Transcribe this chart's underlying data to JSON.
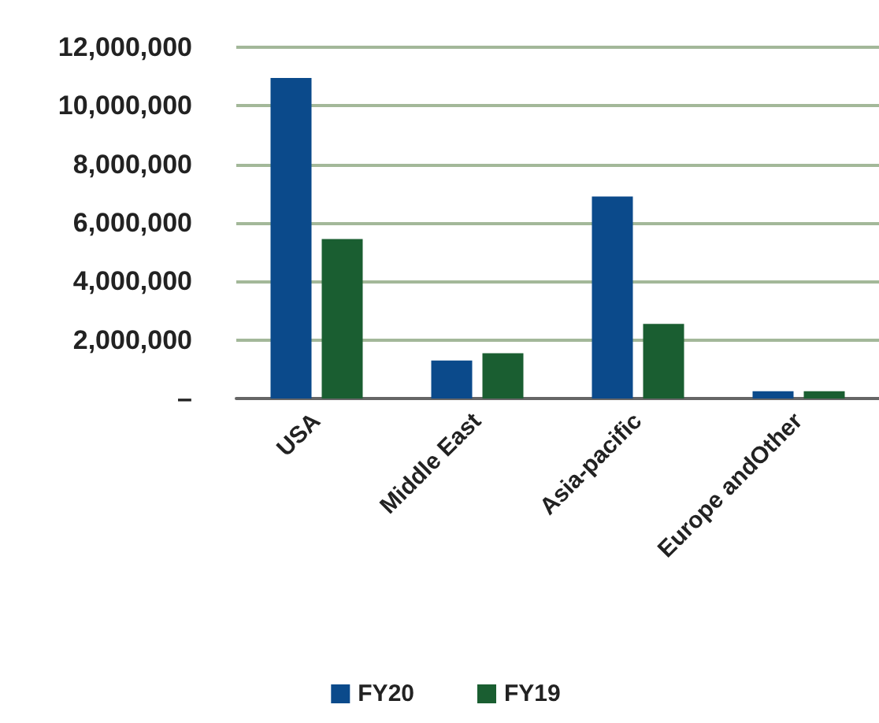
{
  "chart_data": {
    "type": "bar",
    "categories": [
      "USA",
      "Middle East",
      "Asia-pacific",
      "Europe andOther"
    ],
    "series": [
      {
        "name": "FY20",
        "color": "#0b4a8b",
        "values": [
          10950000,
          1300000,
          6900000,
          250000
        ]
      },
      {
        "name": "FY19",
        "color": "#1a5e31",
        "values": [
          5450000,
          1550000,
          2550000,
          250000
        ]
      }
    ],
    "ylim": [
      0,
      12000000
    ],
    "yticks": [
      {
        "value": 0,
        "label": "–"
      },
      {
        "value": 2000000,
        "label": "2,000,000"
      },
      {
        "value": 4000000,
        "label": "4,000,000"
      },
      {
        "value": 6000000,
        "label": "6,000,000"
      },
      {
        "value": 8000000,
        "label": "8,000,000"
      },
      {
        "value": 10000000,
        "label": "10,000,000"
      },
      {
        "value": 12000000,
        "label": "12,000,000"
      }
    ],
    "grid": "y",
    "legend": "bottom"
  }
}
